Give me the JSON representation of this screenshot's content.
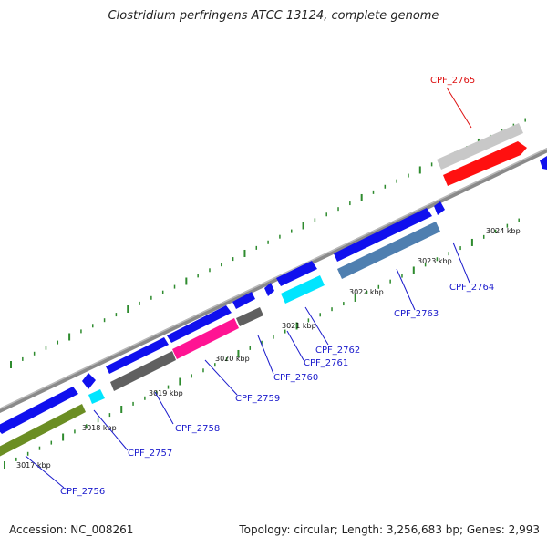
{
  "title": "Clostridium perfringens ATCC 13124, complete genome",
  "footer": {
    "accession": "Accession: NC_008261",
    "summary": "Topology: circular; Length: 3,256,683 bp; Genes: 2,993"
  },
  "colors": {
    "backbone": "#8a8a8a",
    "ticks": "#2e8b2e",
    "label_blue": "#1a1acc",
    "label_red": "#dd1111",
    "cds_blue": "#1010ee",
    "highlight_red": "#ff1010",
    "olive": "#6b8e23",
    "cyan": "#00e5ff",
    "magenta": "#ff1493",
    "dark_gray": "#606060",
    "steel_blue": "#4f7fb0",
    "light_gray": "#c8c8c8"
  },
  "kbp_labels": [
    "3017 kbp",
    "3018 kbp",
    "3019 kbp",
    "3020 kbp",
    "3021 kbp",
    "3022 kbp",
    "3023 kbp",
    "3024 kbp"
  ],
  "genes": [
    {
      "id": "CPF_2756",
      "color": "blue"
    },
    {
      "id": "CPF_2757",
      "color": "blue"
    },
    {
      "id": "CPF_2758",
      "color": "blue"
    },
    {
      "id": "CPF_2759",
      "color": "blue"
    },
    {
      "id": "CPF_2760",
      "color": "blue"
    },
    {
      "id": "CPF_2761",
      "color": "blue"
    },
    {
      "id": "CPF_2762",
      "color": "blue"
    },
    {
      "id": "CPF_2763",
      "color": "blue"
    },
    {
      "id": "CPF_2764",
      "color": "blue"
    },
    {
      "id": "CPF_2765",
      "color": "red"
    }
  ]
}
